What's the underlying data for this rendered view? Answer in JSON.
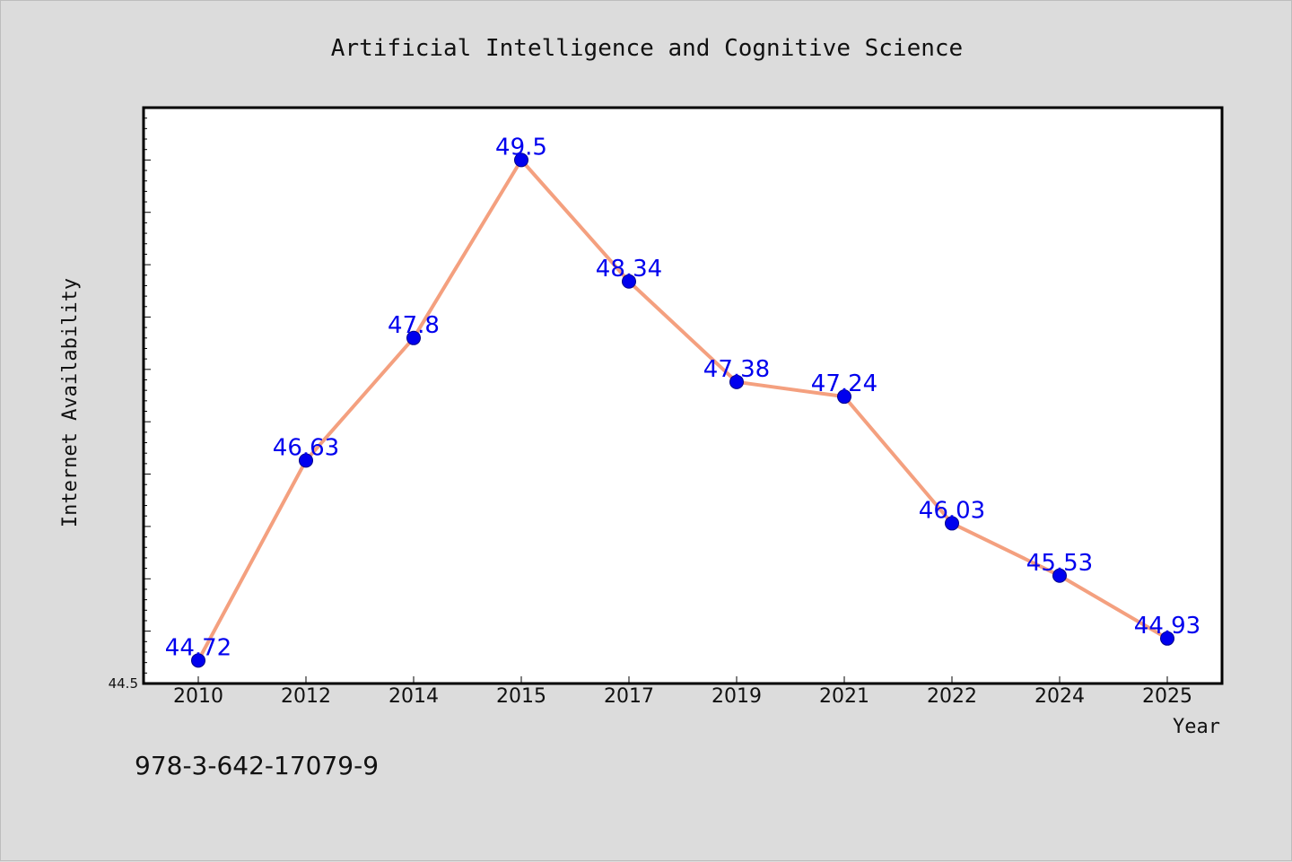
{
  "chart_data": {
    "type": "line",
    "title": "Artificial Intelligence and Cognitive Science",
    "xlabel": "Year",
    "ylabel": "Internet Availability",
    "categories": [
      "2010",
      "2012",
      "2014",
      "2015",
      "2017",
      "2019",
      "2021",
      "2022",
      "2024",
      "2025"
    ],
    "series": [
      {
        "values": [
          44.72,
          46.63,
          47.8,
          49.5,
          48.34,
          47.38,
          47.24,
          46.03,
          45.53,
          44.93
        ]
      }
    ],
    "data_labels": [
      "44.72",
      "46.63",
      "47.8",
      "49.5",
      "48.34",
      "47.38",
      "47.24",
      "46.03",
      "45.53",
      "44.93"
    ],
    "ylim": [
      44.5,
      50.0
    ],
    "ytick_labels": [
      "44.5"
    ],
    "grid": false,
    "legend": "none",
    "colors": {
      "line": "#f4a07f",
      "marker": "#0000ee",
      "label": "#0000ee",
      "background": "#dcdcdc",
      "plot_background": "#ffffff"
    }
  },
  "footer": {
    "isbn": "978-3-642-17079-9"
  }
}
